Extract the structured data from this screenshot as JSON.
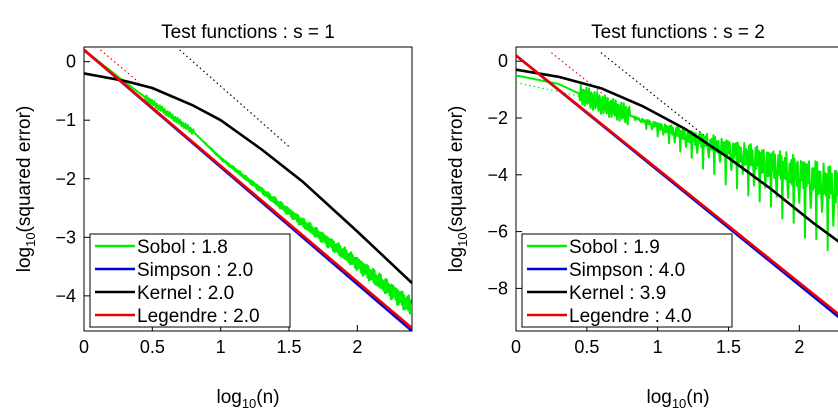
{
  "chart_data": [
    {
      "type": "line",
      "title": "Test functions : s = 1",
      "xlabel": "log10(n)",
      "ylabel": "log10(squared error)",
      "xlim": [
        0,
        2.4
      ],
      "ylim": [
        -4.6,
        0.25
      ],
      "xticks": [
        0,
        0.5,
        1,
        1.5,
        2
      ],
      "xtick_labels": [
        "0",
        "0.5",
        "1",
        "1.5",
        "2"
      ],
      "yticks": [
        0,
        -1,
        -2,
        -3,
        -4
      ],
      "ytick_labels": [
        "0",
        "−1",
        "−2",
        "−3",
        "−4"
      ],
      "legend_position": "bottom-left",
      "series": [
        {
          "name": "Sobol : 1.8",
          "color": "#00ee00",
          "style": "noisy",
          "x": [
            0,
            0.3,
            0.5,
            0.8,
            1.0,
            1.3,
            1.6,
            2.0,
            2.4
          ],
          "y": [
            0.2,
            -0.35,
            -0.7,
            -1.2,
            -1.65,
            -2.2,
            -2.75,
            -3.45,
            -4.2
          ]
        },
        {
          "name": "Simpson : 2.0",
          "color": "#0000dd",
          "x": [
            0,
            2.4
          ],
          "y": [
            0.2,
            -4.6
          ]
        },
        {
          "name": "Kernel : 2.0",
          "color": "#000000",
          "x": [
            0,
            0.3,
            0.5,
            0.8,
            1.0,
            1.3,
            1.6,
            2.0,
            2.4
          ],
          "y": [
            -0.2,
            -0.33,
            -0.45,
            -0.75,
            -1.0,
            -1.5,
            -2.05,
            -2.9,
            -3.78
          ]
        },
        {
          "name": "Legendre : 2.0",
          "color": "#ee0000",
          "x": [
            0,
            2.4
          ],
          "y": [
            0.2,
            -4.55
          ]
        }
      ],
      "reference_lines": [
        {
          "color": "#000000",
          "x": [
            0.7,
            1.5
          ],
          "y": [
            0.2,
            -1.45
          ]
        },
        {
          "color": "#ee0000",
          "x": [
            0.12,
            0.4
          ],
          "y": [
            0.2,
            -0.35
          ]
        }
      ]
    },
    {
      "type": "line",
      "title": "Test functions : s = 2",
      "xlabel": "log10(n)",
      "ylabel": "log10(squared error)",
      "xlim": [
        0,
        2.4
      ],
      "ylim": [
        -9.5,
        0.5
      ],
      "xticks": [
        0,
        0.5,
        1,
        1.5,
        2
      ],
      "xtick_labels": [
        "0",
        "0.5",
        "1",
        "1.5",
        "2"
      ],
      "yticks": [
        0,
        -2,
        -4,
        -6,
        -8
      ],
      "ytick_labels": [
        "0",
        "−2",
        "−4",
        "−6",
        "−8"
      ],
      "legend_position": "bottom-left",
      "series": [
        {
          "name": "Sobol : 1.9",
          "color": "#00ee00",
          "style": "noisy",
          "x": [
            0,
            0.3,
            0.6,
            0.9,
            1.2,
            1.5,
            1.8,
            2.1,
            2.4
          ],
          "y": [
            -0.5,
            -0.8,
            -1.5,
            -2.1,
            -2.6,
            -3.1,
            -3.6,
            -4.1,
            -4.7
          ]
        },
        {
          "name": "Simpson : 4.0",
          "color": "#0000dd",
          "x": [
            0,
            2.4
          ],
          "y": [
            0.2,
            -9.5
          ]
        },
        {
          "name": "Kernel : 3.9",
          "color": "#000000",
          "x": [
            0,
            0.3,
            0.6,
            0.9,
            1.2,
            1.5,
            1.8,
            2.1,
            2.4
          ],
          "y": [
            -0.3,
            -0.55,
            -0.95,
            -1.6,
            -2.4,
            -3.4,
            -4.5,
            -5.7,
            -6.8
          ]
        },
        {
          "name": "Legendre : 4.0",
          "color": "#ee0000",
          "x": [
            0,
            2.4
          ],
          "y": [
            0.2,
            -9.4
          ]
        }
      ],
      "reference_lines": [
        {
          "color": "#000000",
          "x": [
            0.6,
            1.45
          ],
          "y": [
            0.3,
            -3.1
          ]
        },
        {
          "color": "#00ee00",
          "x": [
            0,
            0.55
          ],
          "y": [
            -0.75,
            -1.35
          ]
        },
        {
          "color": "#ee0000",
          "x": [
            0.25,
            0.7
          ],
          "y": [
            0.3,
            -1.5
          ]
        }
      ]
    }
  ]
}
